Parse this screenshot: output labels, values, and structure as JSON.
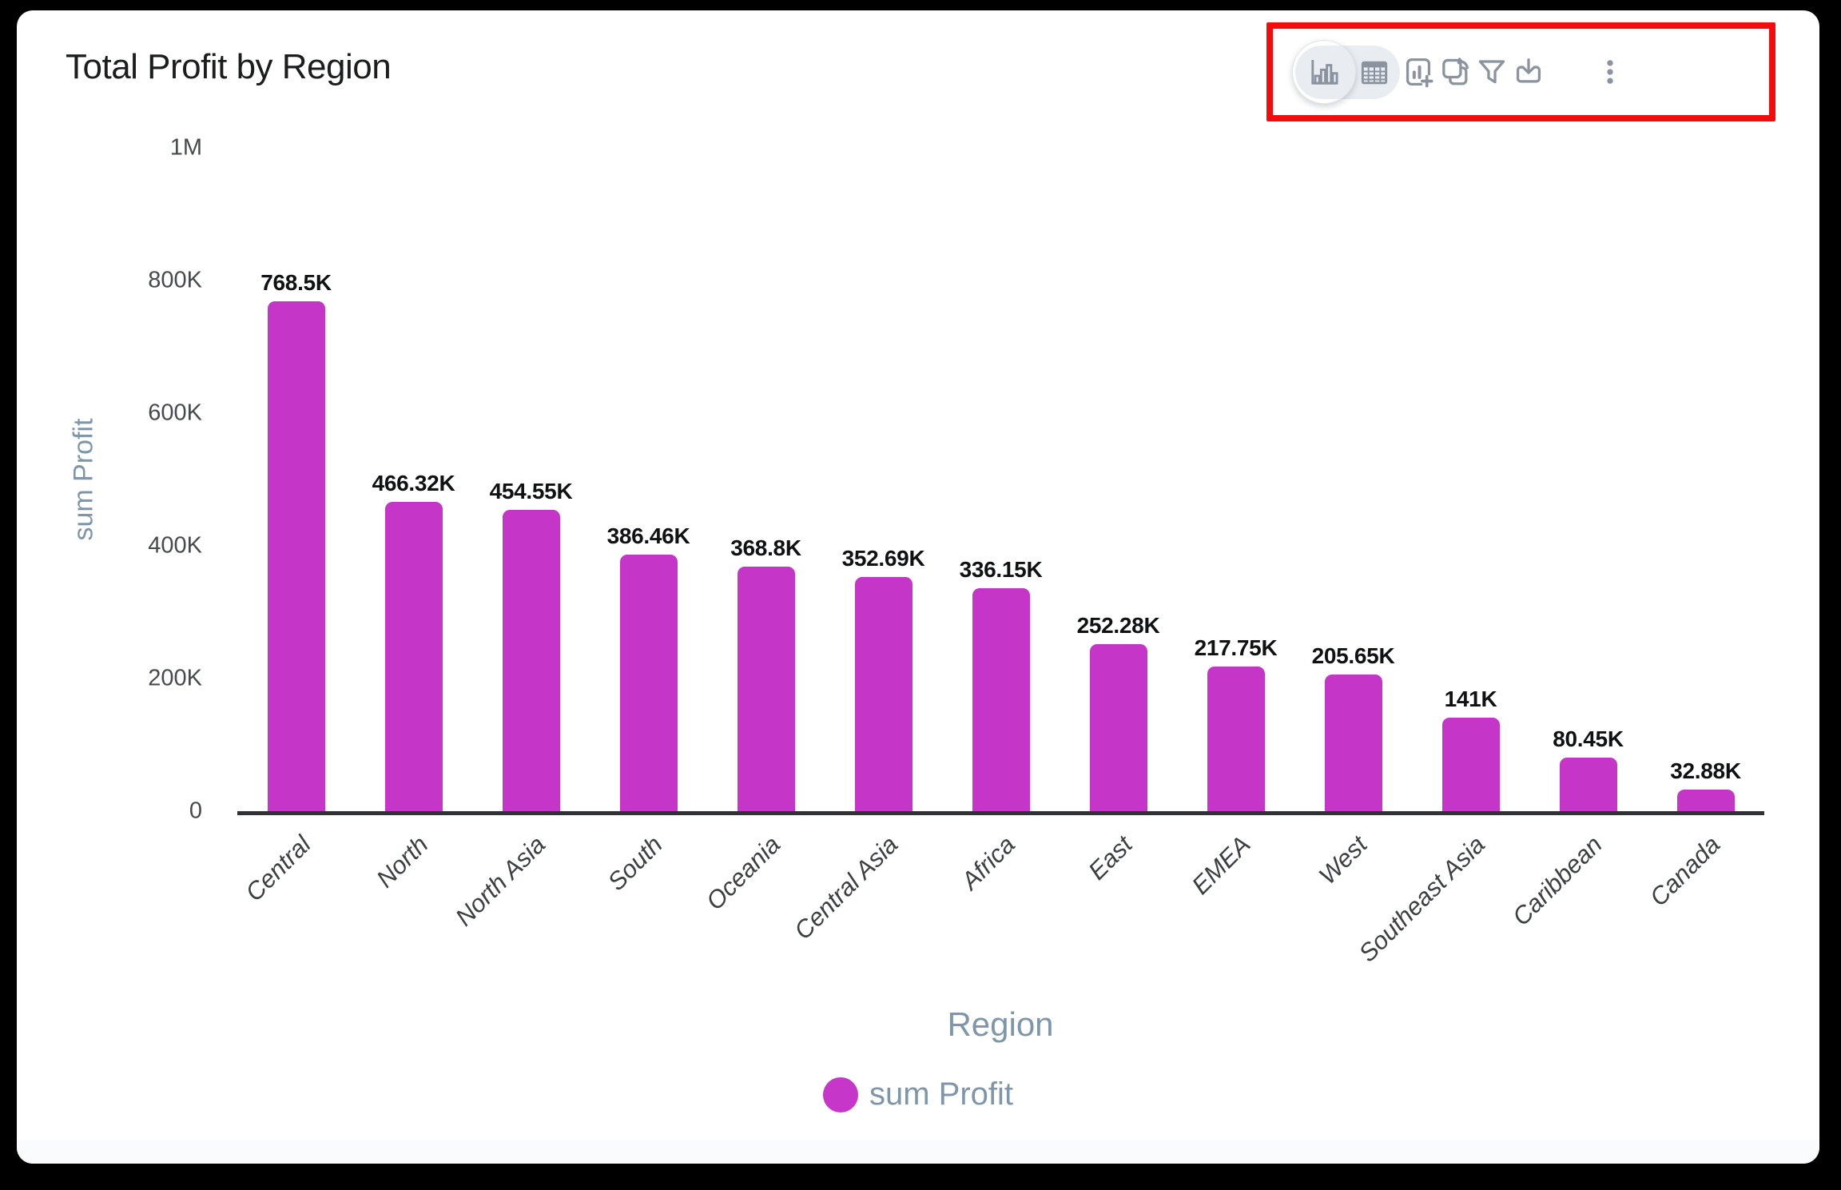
{
  "window": {
    "frame_color": "#000000",
    "card_color": "#ffffff"
  },
  "header": {
    "title": "Total Profit by Region"
  },
  "toolbar": {
    "highlight_color": "#f20d0d",
    "view_toggle": {
      "options": [
        {
          "id": "chart-view",
          "icon": "bar-chart-icon",
          "selected": true
        },
        {
          "id": "table-view",
          "icon": "table-icon",
          "selected": false
        }
      ]
    },
    "buttons": [
      {
        "id": "add-chart",
        "icon": "add-chart-icon"
      },
      {
        "id": "convert-chart",
        "icon": "convert-chart-icon"
      },
      {
        "id": "filter",
        "icon": "filter-icon"
      },
      {
        "id": "download",
        "icon": "download-icon"
      },
      {
        "id": "more-options",
        "icon": "kebab-menu-icon"
      }
    ],
    "icon_color": "#8a939e"
  },
  "chart_data": {
    "type": "bar",
    "title": "Total Profit by Region",
    "xlabel": "Region",
    "ylabel": "sum Profit",
    "categories": [
      "Central",
      "North",
      "North Asia",
      "South",
      "Oceania",
      "Central Asia",
      "Africa",
      "East",
      "EMEA",
      "West",
      "Southeast Asia",
      "Caribbean",
      "Canada"
    ],
    "values": [
      768500,
      466320,
      454550,
      386460,
      368800,
      352690,
      336150,
      252280,
      217750,
      205650,
      141000,
      80450,
      32880
    ],
    "value_labels": [
      "768.5K",
      "466.32K",
      "454.55K",
      "386.46K",
      "368.8K",
      "352.69K",
      "336.15K",
      "252.28K",
      "217.75K",
      "205.65K",
      "141K",
      "80.45K",
      "32.88K"
    ],
    "ylim": [
      0,
      1000000
    ],
    "yticks": [
      {
        "value": 0,
        "label": "0"
      },
      {
        "value": 200000,
        "label": "200K"
      },
      {
        "value": 400000,
        "label": "400K"
      },
      {
        "value": 600000,
        "label": "600K"
      },
      {
        "value": 800000,
        "label": "800K"
      },
      {
        "value": 1000000,
        "label": "1M"
      }
    ],
    "bar_color": "#c435c8",
    "grid": false,
    "legend_position": "bottom",
    "legend": [
      {
        "label": "sum Profit",
        "color": "#c636c8"
      }
    ]
  }
}
